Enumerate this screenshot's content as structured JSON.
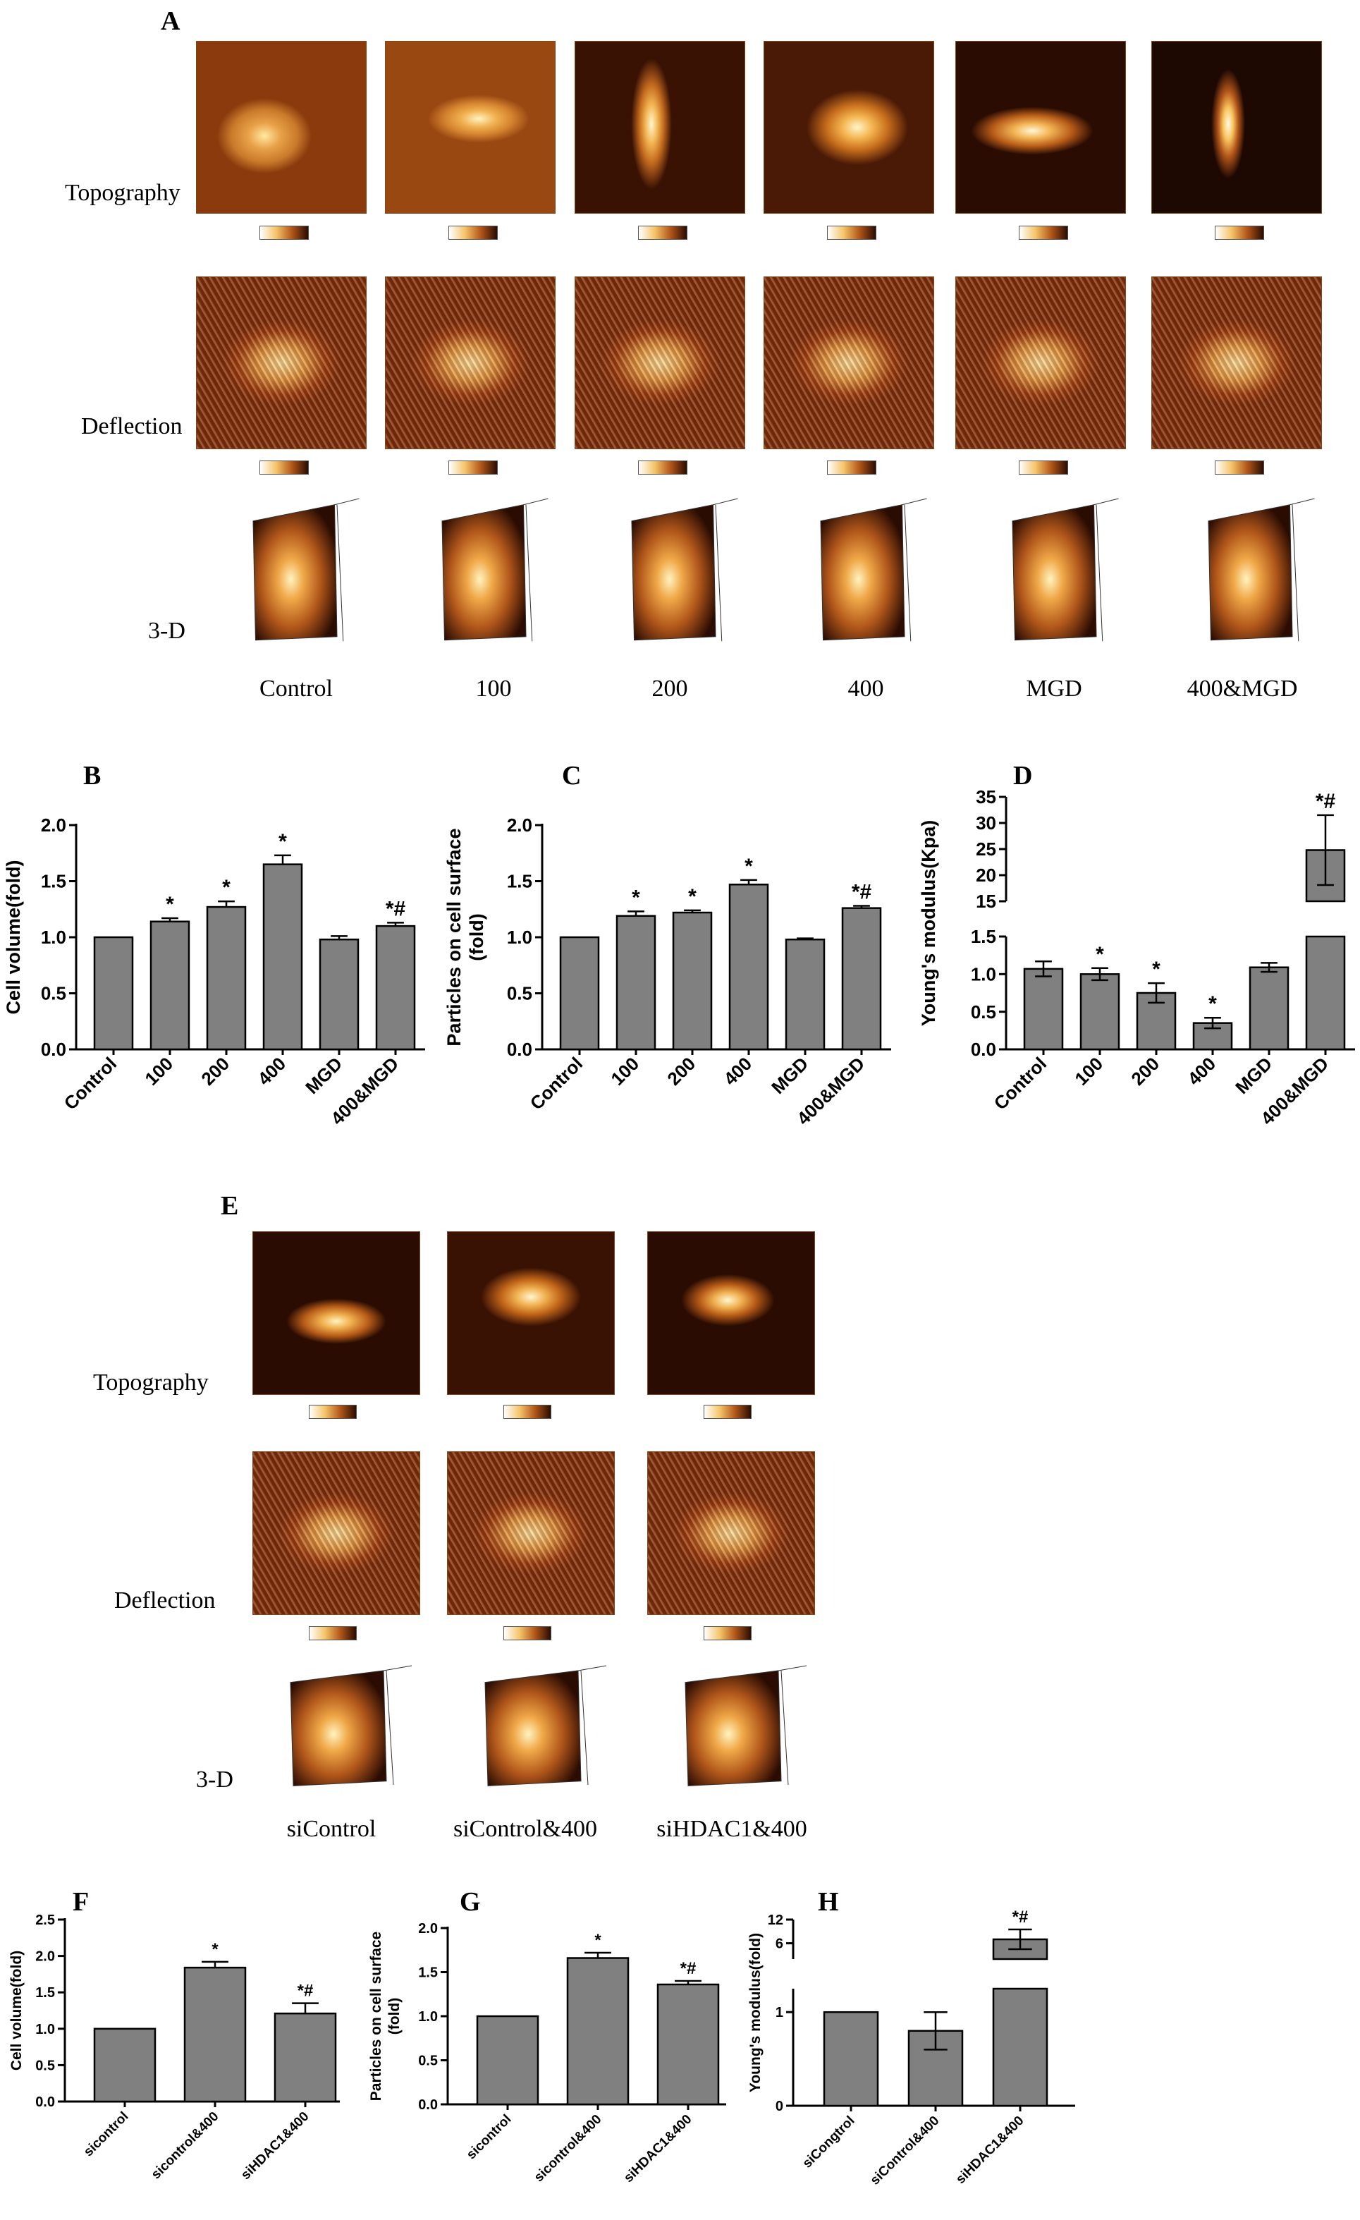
{
  "panel_letters": [
    "A",
    "B",
    "C",
    "D",
    "E",
    "F",
    "G",
    "H"
  ],
  "panel_a": {
    "row_labels": [
      "Topography",
      "Deflection",
      "3-D"
    ],
    "groups": [
      "Control",
      "100",
      "200",
      "400",
      "MGD",
      "400&MGD"
    ]
  },
  "panel_e": {
    "row_labels": [
      "Topography",
      "Deflection",
      "3-D"
    ],
    "groups": [
      "siControl",
      "siControl&400",
      "siHDAC1&400"
    ]
  },
  "colors": {
    "bar": "#808080",
    "axis": "#000000"
  },
  "chart_data": [
    {
      "panel": "B",
      "type": "bar",
      "categories": [
        "Control",
        "100",
        "200",
        "400",
        "MGD",
        "400&MGD"
      ],
      "values": [
        1.0,
        1.14,
        1.27,
        1.65,
        0.98,
        1.1
      ],
      "errors": [
        0.0,
        0.03,
        0.05,
        0.08,
        0.03,
        0.03
      ],
      "annotations": [
        "",
        "*",
        "*",
        "*",
        "",
        "*#"
      ],
      "ylabel": "Cell volume(fold)",
      "ylim": [
        0,
        2.0
      ],
      "yticks": [
        "0.0",
        "0.5",
        "1.0",
        "1.5",
        "2.0"
      ]
    },
    {
      "panel": "C",
      "type": "bar",
      "categories": [
        "Control",
        "100",
        "200",
        "400",
        "MGD",
        "400&MGD"
      ],
      "values": [
        1.0,
        1.19,
        1.22,
        1.47,
        0.98,
        1.26
      ],
      "errors": [
        0.0,
        0.04,
        0.02,
        0.04,
        0.01,
        0.02
      ],
      "annotations": [
        "",
        "*",
        "*",
        "*",
        "",
        "*#"
      ],
      "ylabel": "Particles on cell surface (fold)",
      "ylim": [
        0,
        2.0
      ],
      "yticks": [
        "0.0",
        "0.5",
        "1.0",
        "1.5",
        "2.0"
      ]
    },
    {
      "panel": "D",
      "type": "bar",
      "broken_axis": true,
      "categories": [
        "Control",
        "100",
        "200",
        "400",
        "MGD",
        "400&MGD"
      ],
      "values": [
        1.07,
        1.0,
        0.75,
        0.35,
        1.09,
        24.8
      ],
      "errors": [
        0.1,
        0.08,
        0.13,
        0.07,
        0.06,
        6.7
      ],
      "annotations": [
        "",
        "*",
        "*",
        "*",
        "",
        "*#"
      ],
      "ylabel": "Young's modulus(Kpa)",
      "lower_range": [
        0,
        1.5
      ],
      "upper_range": [
        15,
        35
      ],
      "yticks_lower": [
        "0.0",
        "0.5",
        "1.0",
        "1.5"
      ],
      "yticks_upper": [
        "15",
        "20",
        "25",
        "30",
        "35"
      ]
    },
    {
      "panel": "F",
      "type": "bar",
      "categories": [
        "sicontrol",
        "sicontrol&400",
        "siHDAC1&400"
      ],
      "values": [
        1.0,
        1.84,
        1.21
      ],
      "errors": [
        0.0,
        0.08,
        0.14
      ],
      "annotations": [
        "",
        "*",
        "*#"
      ],
      "ylabel": "Cell volume(fold)",
      "ylim": [
        0,
        2.5
      ],
      "yticks": [
        "0.0",
        "0.5",
        "1.0",
        "1.5",
        "2.0",
        "2.5"
      ]
    },
    {
      "panel": "G",
      "type": "bar",
      "categories": [
        "sicontrol",
        "sicontrol&400",
        "siHDAC1&400"
      ],
      "values": [
        1.0,
        1.66,
        1.36
      ],
      "errors": [
        0.0,
        0.06,
        0.04
      ],
      "annotations": [
        "",
        "*",
        "*#"
      ],
      "ylabel": "Particles on cell surface (fold)",
      "ylim": [
        0,
        2.0
      ],
      "yticks": [
        "0.0",
        "0.5",
        "1.0",
        "1.5",
        "2.0"
      ]
    },
    {
      "panel": "H",
      "type": "bar",
      "broken_axis": true,
      "categories": [
        "siCongtrol",
        "siControl&400",
        "siHDAC1&400"
      ],
      "values": [
        1.0,
        0.8,
        7.0
      ],
      "errors": [
        0.0,
        0.2,
        2.5
      ],
      "annotations": [
        "",
        "",
        "*#"
      ],
      "ylabel": "Young's modulus(fold)",
      "lower_range": [
        0,
        1.25
      ],
      "upper_range": [
        2,
        12
      ],
      "yticks_lower": [
        "0",
        "1"
      ],
      "yticks_upper": [
        "6",
        "12"
      ]
    }
  ]
}
